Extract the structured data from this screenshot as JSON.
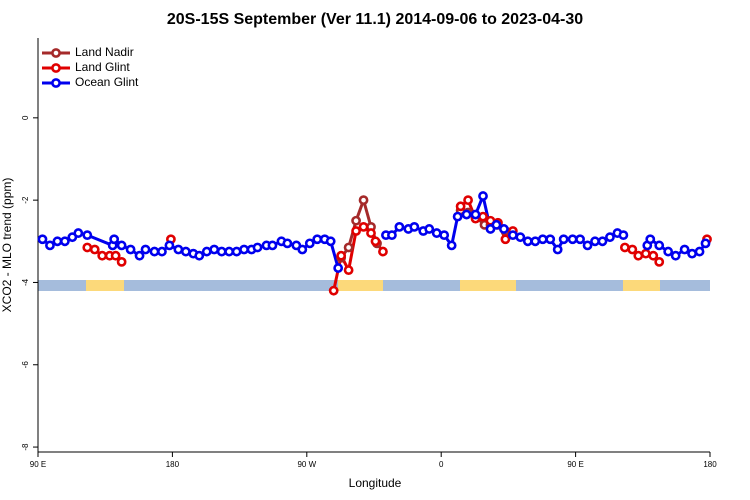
{
  "chart_data": {
    "type": "line",
    "title": "20S-15S September (Ver 11.1)   2014-09-06 to 2023-04-30",
    "x_label": "Longitude",
    "y_label": "XCO2 - MLO trend (ppm)",
    "xlim": [
      90,
      540
    ],
    "xticks": [
      {
        "value": 90,
        "label": "90 E"
      },
      180,
      {
        "value": 270,
        "label": "90 W"
      },
      {
        "value": 360,
        "label": "0"
      },
      {
        "value": 450,
        "label": "90 E"
      },
      {
        "value": 540,
        "label": "180"
      }
    ],
    "ylim": [
      -8.12,
      1.94
    ],
    "yticks": [
      0,
      -2,
      -4,
      -6,
      -8
    ],
    "legend": "upper left",
    "series": [
      {
        "name": "Land Nadir",
        "color": "#a52a2a",
        "x": [
          293,
          298,
          303,
          308,
          313,
          317,
          null,
          373,
          378,
          383,
          389,
          393,
          398,
          403
        ],
        "values": [
          -3.4,
          -3.15,
          -2.5,
          -2.0,
          -2.65,
          -3.05,
          null,
          -2.25,
          -2.3,
          -2.4,
          -2.6,
          -2.6,
          -2.6,
          -2.75
        ]
      },
      {
        "name": "Land Glint",
        "color": "#e00000",
        "x": [
          123,
          128,
          133,
          138,
          142,
          146,
          null,
          179,
          null,
          288,
          293,
          298,
          303,
          308,
          313,
          316,
          321,
          null,
          373,
          378,
          383,
          388,
          393,
          398,
          403,
          408,
          null,
          483,
          488,
          492,
          497,
          502,
          506,
          null,
          538
        ],
        "values": [
          -3.15,
          -3.2,
          -3.35,
          -3.35,
          -3.35,
          -3.5,
          null,
          -2.95,
          null,
          -4.2,
          -3.35,
          -3.7,
          -2.75,
          -2.65,
          -2.8,
          -3.0,
          -3.25,
          null,
          -2.15,
          -2.0,
          -2.45,
          -2.4,
          -2.5,
          -2.55,
          -2.95,
          -2.75,
          null,
          -3.15,
          -3.2,
          -3.35,
          -3.3,
          -3.35,
          -3.5,
          null,
          -2.95
        ]
      },
      {
        "name": "Ocean Glint",
        "color": "#0000ee",
        "x": [
          93,
          98,
          103,
          108,
          113,
          117,
          123,
          140,
          141,
          146,
          152,
          158,
          162,
          168,
          173,
          178,
          184,
          189,
          194,
          198,
          203,
          208,
          213,
          218,
          223,
          228,
          233,
          237,
          243,
          247,
          253,
          257,
          263,
          267,
          272,
          277,
          282,
          286,
          291,
          null,
          323,
          327,
          332,
          338,
          342,
          348,
          352,
          357,
          362,
          367,
          371,
          377,
          383,
          388,
          393,
          397,
          402,
          408,
          413,
          418,
          423,
          428,
          433,
          438,
          442,
          448,
          453,
          458,
          463,
          468,
          473,
          478,
          482,
          null,
          498,
          500,
          506,
          512,
          517,
          523,
          528,
          533,
          537
        ],
        "values": [
          -2.95,
          -3.1,
          -3.0,
          -3.0,
          -2.9,
          -2.8,
          -2.85,
          -3.1,
          -2.95,
          -3.1,
          -3.2,
          -3.35,
          -3.2,
          -3.25,
          -3.25,
          -3.1,
          -3.2,
          -3.25,
          -3.3,
          -3.35,
          -3.25,
          -3.2,
          -3.25,
          -3.25,
          -3.25,
          -3.2,
          -3.2,
          -3.15,
          -3.1,
          -3.1,
          -3.0,
          -3.05,
          -3.1,
          -3.2,
          -3.05,
          -2.95,
          -2.95,
          -3.0,
          -3.65,
          null,
          -2.85,
          -2.85,
          -2.65,
          -2.7,
          -2.65,
          -2.75,
          -2.7,
          -2.8,
          -2.85,
          -3.1,
          -2.4,
          -2.35,
          -2.35,
          -1.9,
          -2.7,
          -2.6,
          -2.7,
          -2.85,
          -2.9,
          -3.0,
          -3.0,
          -2.95,
          -2.95,
          -3.2,
          -2.95,
          -2.95,
          -2.95,
          -3.1,
          -3.0,
          -3.0,
          -2.9,
          -2.8,
          -2.85,
          null,
          -3.1,
          -2.95,
          -3.1,
          -3.25,
          -3.35,
          -3.2,
          -3.3,
          -3.25,
          -3.05
        ]
      }
    ]
  }
}
